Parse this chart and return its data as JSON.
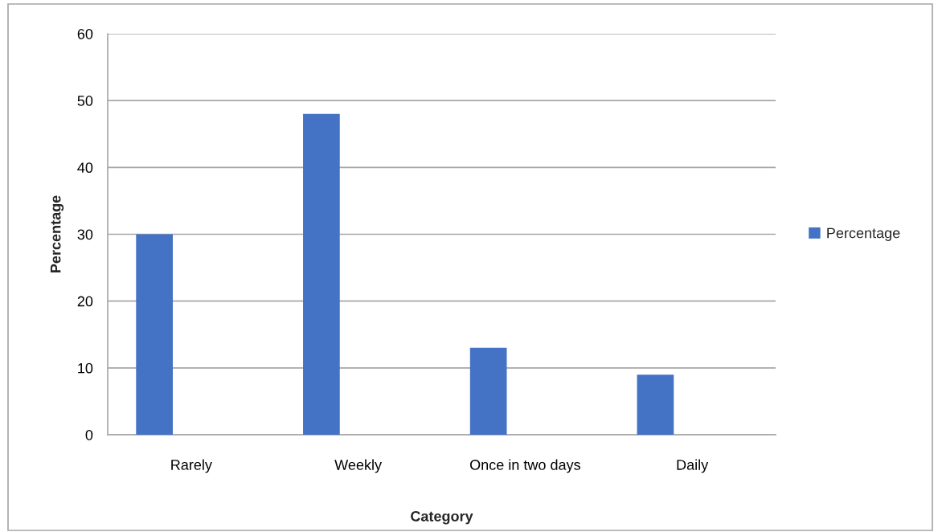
{
  "chart_data": {
    "type": "bar",
    "xlabel": "Category",
    "ylabel": "Percentage",
    "categories": [
      "Rarely",
      "Weekly",
      "Once in two days",
      "Daily"
    ],
    "series": [
      {
        "name": "Percentage",
        "color": "#4472c4",
        "values": [
          30,
          48,
          13,
          9
        ]
      }
    ],
    "ylim": [
      0,
      60
    ],
    "yticks": [
      0,
      10,
      20,
      30,
      40,
      50,
      60
    ],
    "grid": "y",
    "legend": "right"
  }
}
